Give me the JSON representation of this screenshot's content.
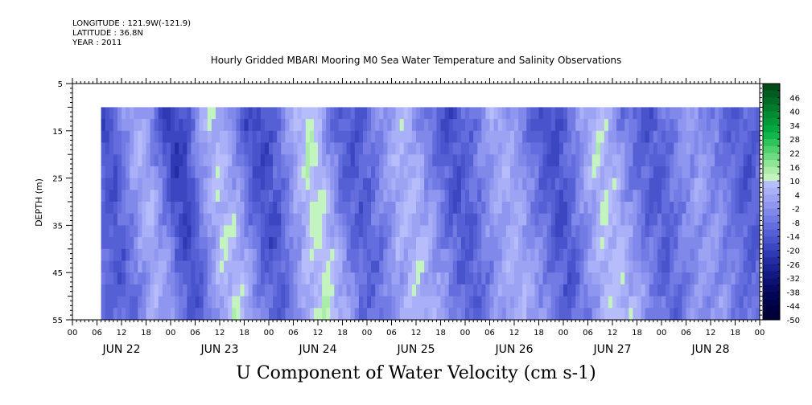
{
  "header": {
    "longitude": "LONGITUDE : 121.9W(-121.9)",
    "latitude": "LATITUDE : 36.8N",
    "year": "YEAR : 2011"
  },
  "chart_data": {
    "type": "heatmap",
    "title": "Hourly Gridded MBARI Mooring M0 Sea Water Temperature and Salinity Observations",
    "variable_title": "U Component of Water Velocity (cm s-1)",
    "ylabel": "DEPTH (m)",
    "y_reversed": true,
    "ylim": [
      5,
      55
    ],
    "y_ticks": [
      5,
      15,
      25,
      35,
      45,
      55
    ],
    "data_depth_range": [
      10,
      55
    ],
    "x_hour_tick_labels": [
      "00",
      "06",
      "12",
      "18",
      "00",
      "06",
      "12",
      "18",
      "00",
      "06",
      "12",
      "18",
      "00",
      "06",
      "12",
      "18",
      "00",
      "06",
      "12",
      "18",
      "00",
      "06",
      "12",
      "18",
      "00",
      "06",
      "12",
      "18",
      "00"
    ],
    "day_labels": [
      "JUN 22",
      "JUN 23",
      "JUN 24",
      "JUN 25",
      "JUN 26",
      "JUN 27",
      "JUN 28"
    ],
    "data_start_hour": 7,
    "data_end_hour": 168,
    "colorbar": {
      "labels": [
        "46",
        "40",
        "34",
        "28",
        "22",
        "16",
        "10",
        "4",
        "-2",
        "-8",
        "-14",
        "-20",
        "-26",
        "-32",
        "-38",
        "-44",
        "-50"
      ],
      "levels": [
        52,
        49,
        46,
        43,
        40,
        37,
        34,
        31,
        28,
        25,
        22,
        19,
        16,
        13,
        10,
        7,
        4,
        1,
        -2,
        -5,
        -8,
        -11,
        -14,
        -17,
        -20,
        -23,
        -26,
        -29,
        -32,
        -35,
        -38,
        -41,
        -44,
        -47,
        -50
      ],
      "colors": [
        "#004d1a",
        "#005c20",
        "#006b26",
        "#007a2c",
        "#008a33",
        "#00993a",
        "#00a841",
        "#10b84b",
        "#2ec45c",
        "#4dd06e",
        "#6edb82",
        "#8fe596",
        "#aaedaa",
        "#c3f4bf",
        "#b7bdfa",
        "#aab0f7",
        "#9ca3f3",
        "#8e96ef",
        "#8089ea",
        "#727be4",
        "#646ddd",
        "#5660d5",
        "#4953cc",
        "#3c46c1",
        "#3039b4",
        "#252da4",
        "#1b2294",
        "#131983",
        "#0c1173",
        "#060a64",
        "#020556",
        "#00024a",
        "#000040",
        "#000038"
      ]
    },
    "field": {
      "band_centers_hours": [
        15,
        34,
        57,
        80,
        104,
        128,
        151
      ],
      "band_values_cm_s": [
        14,
        16,
        18,
        14,
        12,
        16,
        8
      ],
      "negative_centers_hours": [
        8,
        24,
        44,
        66,
        92,
        116,
        140,
        162
      ],
      "negative_values_cm_s": [
        -18,
        -24,
        -16,
        -12,
        -12,
        -14,
        -10,
        -8
      ]
    }
  }
}
